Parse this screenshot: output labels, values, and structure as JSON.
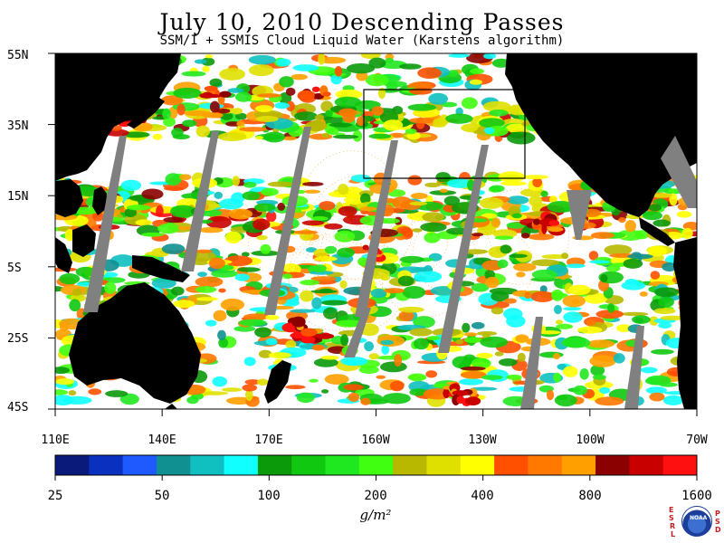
{
  "title": "July 10, 2010  Descending Passes",
  "subtitle": "SSM/I + SSMIS Cloud Liquid Water (Karstens algorithm)",
  "lat_labels": [
    "55N",
    "35N",
    "15N",
    "5S",
    "25S",
    "45S"
  ],
  "lon_labels": [
    "110E",
    "140E",
    "170E",
    "160W",
    "130W",
    "100W",
    "70W"
  ],
  "colorbar": {
    "labels": [
      "25",
      "50",
      "100",
      "200",
      "400",
      "800",
      "1600"
    ],
    "units": "g/m²",
    "colors": [
      "#0a1a7a",
      "#0a30c0",
      "#1e5aff",
      "#109090",
      "#10c0c0",
      "#10ffff",
      "#0a9a0a",
      "#10c810",
      "#20e820",
      "#40ff10",
      "#b8b800",
      "#e0e000",
      "#ffff00",
      "#ff5000",
      "#ff7800",
      "#ffa000",
      "#8b0000",
      "#c80000",
      "#ff1010"
    ]
  },
  "logo": {
    "left_letters": [
      "E",
      "S",
      "R",
      "L"
    ],
    "right_letters": [
      "P",
      "S",
      "D"
    ],
    "center": "NOAA"
  },
  "map": {
    "extent": {
      "lon_min": 110,
      "lon_max": 290,
      "lat_min": -45,
      "lat_max": 55
    },
    "land_color": "#000000",
    "gap_color": "#808080",
    "box_region": {
      "lon_min": 195,
      "lon_max": 240,
      "lat_min": 20,
      "lat_max": 45
    }
  }
}
